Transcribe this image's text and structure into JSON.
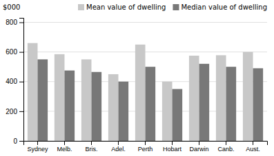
{
  "chart_data": {
    "type": "bar",
    "categories": [
      "Sydney",
      "Melb.",
      "Bris.",
      "Adel.",
      "Perth",
      "Hobart",
      "Darwin",
      "Canb.",
      "Aust."
    ],
    "series": [
      {
        "name": "Mean value of dwelling",
        "color": "#c8c8c8",
        "values": [
          660,
          585,
          550,
          450,
          650,
          400,
          575,
          578,
          600
        ]
      },
      {
        "name": "Median value of dwelling",
        "color": "#787878",
        "values": [
          550,
          475,
          465,
          400,
          500,
          350,
          520,
          500,
          490
        ]
      }
    ],
    "ylabel": "$000",
    "ylim": [
      0,
      830
    ],
    "yticks": [
      0,
      200,
      400,
      600,
      800
    ],
    "grid": true,
    "legend": "upper right"
  }
}
